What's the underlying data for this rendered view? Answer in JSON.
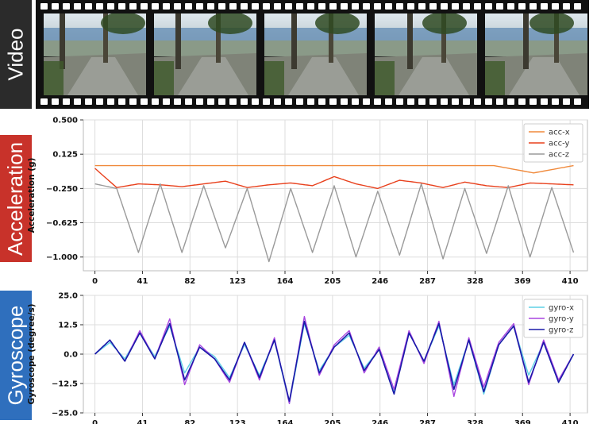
{
  "side_labels": {
    "video": "Video",
    "acceleration": "Acceleration",
    "gyroscope": "Gyroscope"
  },
  "colors": {
    "acc_x": "#f08a3c",
    "acc_y": "#e8401c",
    "acc_z": "#9a9a9a",
    "gyro_x": "#5fd0e6",
    "gyro_y": "#a845e0",
    "gyro_z": "#1a1aa8",
    "video_label_bg": "#2b2b2b",
    "acc_label_bg": "#c8322a",
    "gyro_label_bg": "#2f6fbd"
  },
  "video": {
    "frame_count": 5
  },
  "chart_data": [
    {
      "type": "line",
      "title": "",
      "xlabel": "",
      "ylabel": "Acceleration (g)",
      "xlim": [
        -10,
        425
      ],
      "ylim": [
        -1.15,
        0.5
      ],
      "yticks": [
        0.5,
        0.125,
        -0.25,
        -0.625,
        -1.0
      ],
      "ytick_labels": [
        "0.500",
        "0.125",
        "−0.250",
        "−0.625",
        "−1.000"
      ],
      "xticks": [
        0,
        41,
        82,
        123,
        164,
        205,
        246,
        287,
        328,
        369,
        410
      ],
      "xtick_labels": [
        "0",
        "41",
        "82",
        "123",
        "164",
        "205",
        "246",
        "287",
        "328",
        "369",
        "410"
      ],
      "grid": true,
      "legend_position": "top-right",
      "series": [
        {
          "name": "acc-x",
          "color_key": "acc_x",
          "approx_values": [
            0.0,
            0.0,
            0.0,
            0.0,
            0.0,
            0.0,
            0.0,
            0.0,
            0.0,
            0.0,
            0.0,
            -0.08,
            0.0
          ]
        },
        {
          "name": "acc-y",
          "color_key": "acc_y",
          "approx_values": [
            -0.03,
            -0.24,
            -0.2,
            -0.21,
            -0.23,
            -0.2,
            -0.17,
            -0.24,
            -0.21,
            -0.19,
            -0.22,
            -0.12,
            -0.2,
            -0.25,
            -0.16,
            -0.19,
            -0.24,
            -0.18,
            -0.22,
            -0.24,
            -0.19,
            -0.2,
            -0.21
          ]
        },
        {
          "name": "acc-z",
          "color_key": "acc_z",
          "approx_values": [
            -0.2,
            -0.25,
            -0.95,
            -0.2,
            -0.95,
            -0.22,
            -0.9,
            -0.25,
            -1.05,
            -0.25,
            -0.95,
            -0.22,
            -1.0,
            -0.28,
            -0.98,
            -0.2,
            -1.02,
            -0.25,
            -0.96,
            -0.22,
            -1.0,
            -0.24,
            -0.95
          ]
        }
      ]
    },
    {
      "type": "line",
      "title": "",
      "xlabel": "",
      "ylabel": "Gyroscope (degree/s)",
      "xlim": [
        -10,
        425
      ],
      "ylim": [
        -25,
        25
      ],
      "yticks": [
        25,
        12.5,
        0,
        -12.5,
        -25
      ],
      "ytick_labels": [
        "25.0",
        "12.5",
        "0.0",
        "−12.5",
        "−25.0"
      ],
      "xticks": [
        0,
        41,
        82,
        123,
        164,
        205,
        246,
        287,
        328,
        369,
        410
      ],
      "xtick_labels": [
        "0",
        "41",
        "82",
        "123",
        "164",
        "205",
        "246",
        "287",
        "328",
        "369",
        "410"
      ],
      "grid": true,
      "legend_position": "top-right",
      "series": [
        {
          "name": "gyro-x",
          "color_key": "gyro_x",
          "approx_values": [
            0,
            5,
            -2,
            9,
            -1,
            12,
            -8,
            3,
            -1,
            -10,
            4,
            -9,
            6,
            -21,
            13,
            -7,
            3,
            8,
            -6,
            2,
            -16,
            9,
            -3,
            12,
            -13,
            6,
            -17,
            4,
            12,
            -9,
            5,
            -12,
            0
          ]
        },
        {
          "name": "gyro-y",
          "color_key": "gyro_y",
          "approx_values": [
            0,
            6,
            -3,
            10,
            -2,
            15,
            -13,
            4,
            -2,
            -12,
            5,
            -11,
            7,
            -21,
            16,
            -9,
            4,
            10,
            -8,
            3,
            -15,
            10,
            -4,
            14,
            -18,
            7,
            -14,
            5,
            13,
            -13,
            6,
            -11,
            0
          ]
        },
        {
          "name": "gyro-z",
          "color_key": "gyro_z",
          "approx_values": [
            0,
            6,
            -3,
            9,
            -2,
            13,
            -11,
            3,
            -2,
            -11,
            5,
            -10,
            6,
            -20,
            14,
            -8,
            3,
            9,
            -7,
            2,
            -17,
            9,
            -3,
            13,
            -15,
            6,
            -16,
            4,
            12,
            -12,
            5,
            -12,
            0
          ]
        }
      ]
    }
  ]
}
